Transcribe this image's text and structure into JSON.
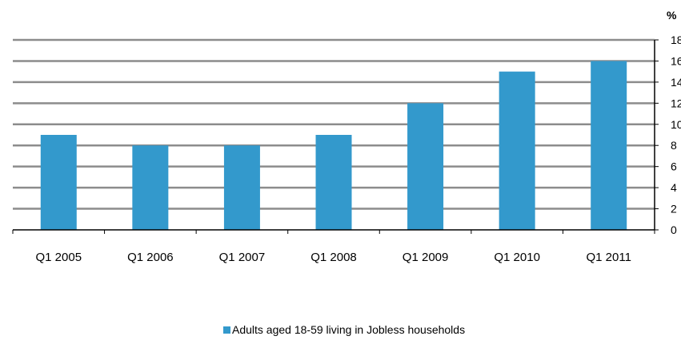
{
  "chart_data": {
    "type": "bar",
    "title": "",
    "xlabel": "",
    "ylabel": "",
    "unit_label": "%",
    "categories": [
      "Q1 2005",
      "Q1 2006",
      "Q1 2007",
      "Q1 2008",
      "Q1 2009",
      "Q1 2010",
      "Q1 2011"
    ],
    "series": [
      {
        "name": "Adults aged 18-59 living in Jobless households",
        "values": [
          9,
          8,
          8,
          9,
          12,
          15,
          16
        ]
      }
    ],
    "ylim": [
      0,
      18
    ],
    "yticks": [
      "0",
      "2",
      "4",
      "6",
      "8",
      "10",
      "12",
      "14",
      "16",
      "18"
    ],
    "y_axis_side": "right",
    "grid": true,
    "legend_position": "bottom",
    "colors": {
      "bar": "#3399CC",
      "grid": "#8C8C8C",
      "axis": "#000000"
    }
  }
}
